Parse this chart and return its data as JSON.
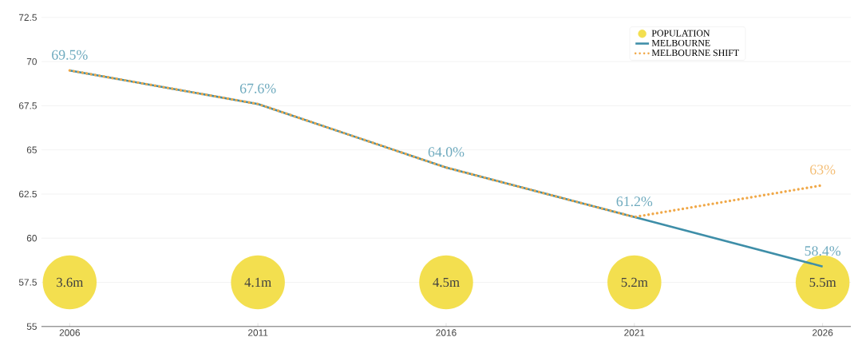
{
  "chart_data": {
    "type": "line",
    "categories": [
      "2006",
      "2011",
      "2016",
      "2021",
      "2026"
    ],
    "series": [
      {
        "name": "MELBOURNE",
        "color": "#3e8ea8",
        "line_style": "solid",
        "marker": "none",
        "values": [
          69.5,
          67.6,
          64.0,
          61.2,
          58.4
        ],
        "value_labels": [
          "69.5%",
          "67.6%",
          "64.0%",
          "61.2%",
          "58.4%"
        ]
      },
      {
        "name": "MELBOURNE SHIFT",
        "color": "#f0a848",
        "line_style": "dotted",
        "marker": "none",
        "values": [
          69.5,
          67.6,
          64.0,
          61.2,
          63
        ],
        "value_labels": [
          null,
          null,
          null,
          null,
          "63%"
        ]
      },
      {
        "name": "POPULATION",
        "type": "scatter",
        "color": "#f3df4f",
        "marker": "circle",
        "values": [
          57.5,
          57.5,
          57.5,
          57.5,
          57.5
        ]
      }
    ],
    "annotations": [
      {
        "text": "3.6m",
        "x": "2006",
        "y": 57.5
      },
      {
        "text": "4.1m",
        "x": "2011",
        "y": 57.5
      },
      {
        "text": "4.5m",
        "x": "2016",
        "y": 57.5
      },
      {
        "text": "5.2m",
        "x": "2021",
        "y": 57.5
      },
      {
        "text": "5.5m",
        "x": "2026",
        "y": 57.5
      }
    ],
    "ylim": [
      55,
      72.5
    ],
    "yticks": [
      55,
      57.5,
      60,
      62.5,
      65,
      67.5,
      70,
      72.5
    ],
    "grid": "y",
    "legend": "top right"
  }
}
